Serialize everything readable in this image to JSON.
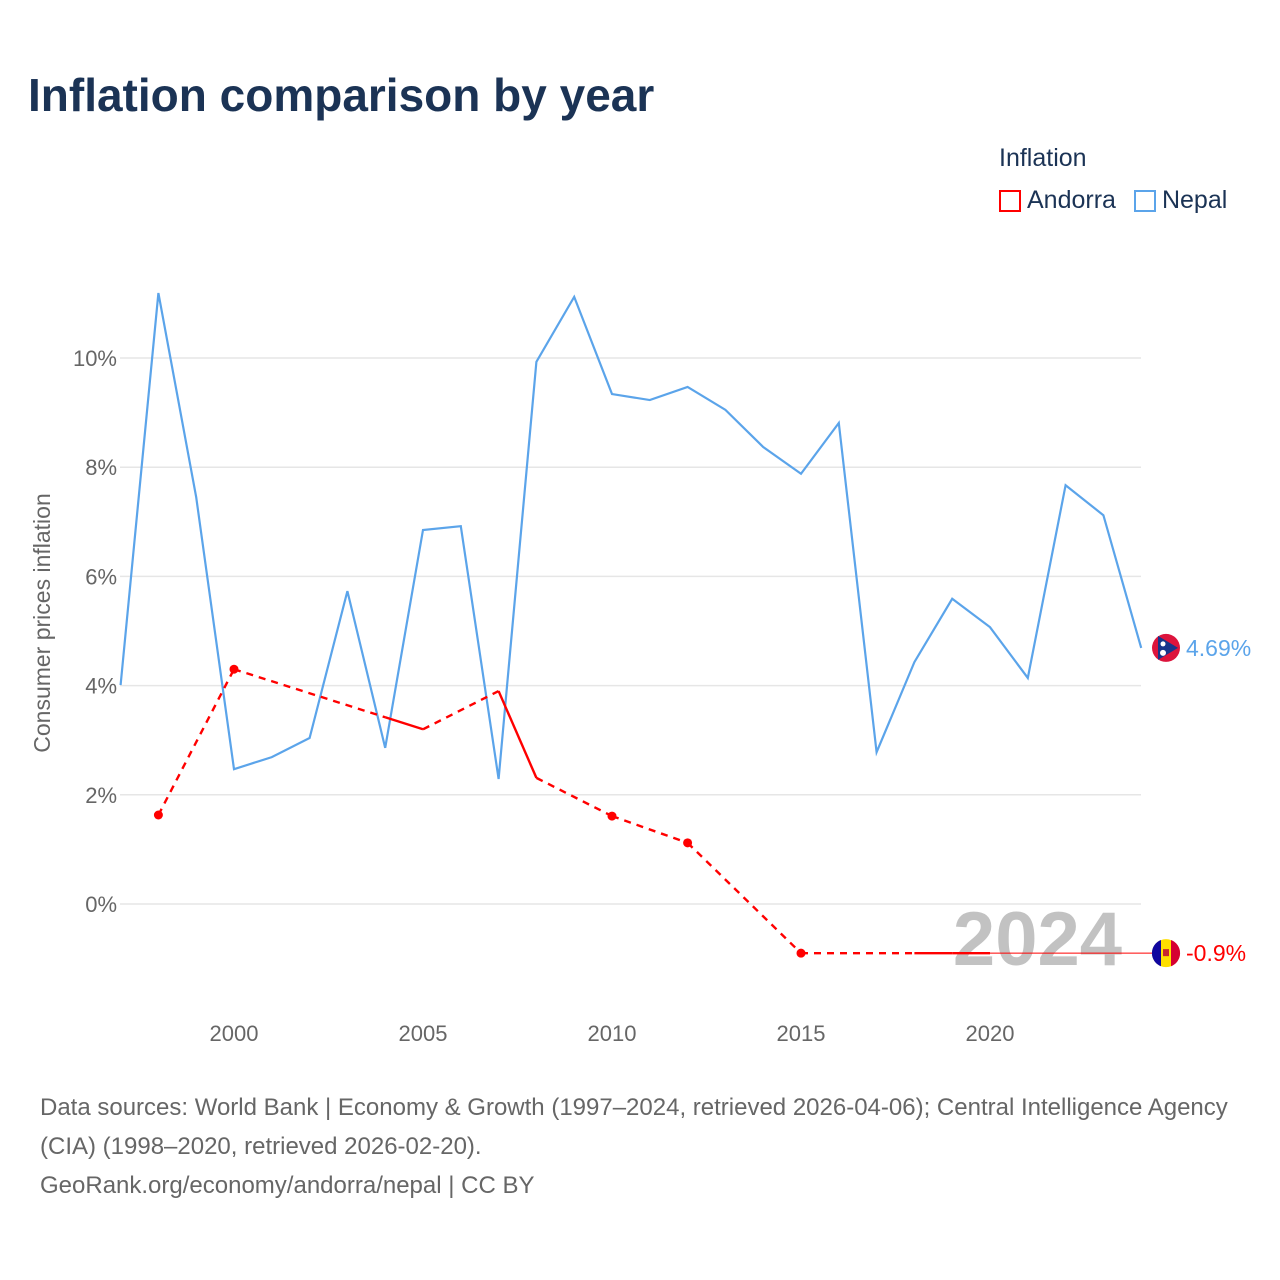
{
  "title": "Inflation comparison by year",
  "legend": {
    "title": "Inflation",
    "items": [
      {
        "label": "Andorra",
        "color": "#ff0000"
      },
      {
        "label": "Nepal",
        "color": "#5ba4ea"
      }
    ]
  },
  "chart_data": {
    "type": "line",
    "title": "Inflation comparison by year",
    "ylabel": "Consumer prices inflation",
    "xlabel": "",
    "xlim": [
      1997,
      2024
    ],
    "ylim": [
      -1.9,
      11.6
    ],
    "x_ticks": [
      2000,
      2005,
      2010,
      2015,
      2020
    ],
    "y_ticks": [
      {
        "v": 0,
        "label": "0%"
      },
      {
        "v": 2,
        "label": "2%"
      },
      {
        "v": 4,
        "label": "4%"
      },
      {
        "v": 6,
        "label": "6%"
      },
      {
        "v": 8,
        "label": "8%"
      },
      {
        "v": 10,
        "label": "10%"
      }
    ],
    "grid": true,
    "year_watermark": "2024",
    "series": [
      {
        "name": "Nepal",
        "color": "#5ba4ea",
        "end_label": "4.69%",
        "x": [
          1997,
          1998,
          1999,
          2000,
          2001,
          2002,
          2003,
          2004,
          2005,
          2006,
          2007,
          2008,
          2009,
          2010,
          2011,
          2012,
          2013,
          2014,
          2015,
          2016,
          2017,
          2018,
          2019,
          2020,
          2021,
          2022,
          2023,
          2024
        ],
        "y": [
          4.01,
          11.19,
          7.45,
          2.47,
          2.69,
          3.04,
          5.73,
          2.86,
          6.85,
          6.92,
          2.29,
          9.93,
          11.12,
          9.34,
          9.23,
          9.47,
          9.05,
          8.37,
          7.88,
          8.81,
          2.78,
          4.43,
          5.59,
          5.07,
          4.14,
          7.67,
          7.12,
          4.69
        ]
      },
      {
        "name": "Andorra",
        "color": "#ff0000",
        "end_label": "-0.9%",
        "x": [
          1998,
          2000,
          2004,
          2005,
          2007,
          2008,
          2010,
          2012,
          2015,
          2018,
          2019,
          2020
        ],
        "y": [
          1.63,
          4.3,
          3.42,
          3.2,
          3.9,
          2.31,
          1.61,
          1.12,
          -0.9,
          -0.9,
          -0.9,
          -0.9
        ]
      }
    ]
  },
  "source": {
    "line1": "Data sources: World Bank | Economy & Growth (1997–2024, retrieved 2026-04-06); Central Intelligence Agency (CIA) (1998–2020, retrieved 2026-02-20).",
    "line2": "GeoRank.org/economy/andorra/nepal | CC BY"
  }
}
